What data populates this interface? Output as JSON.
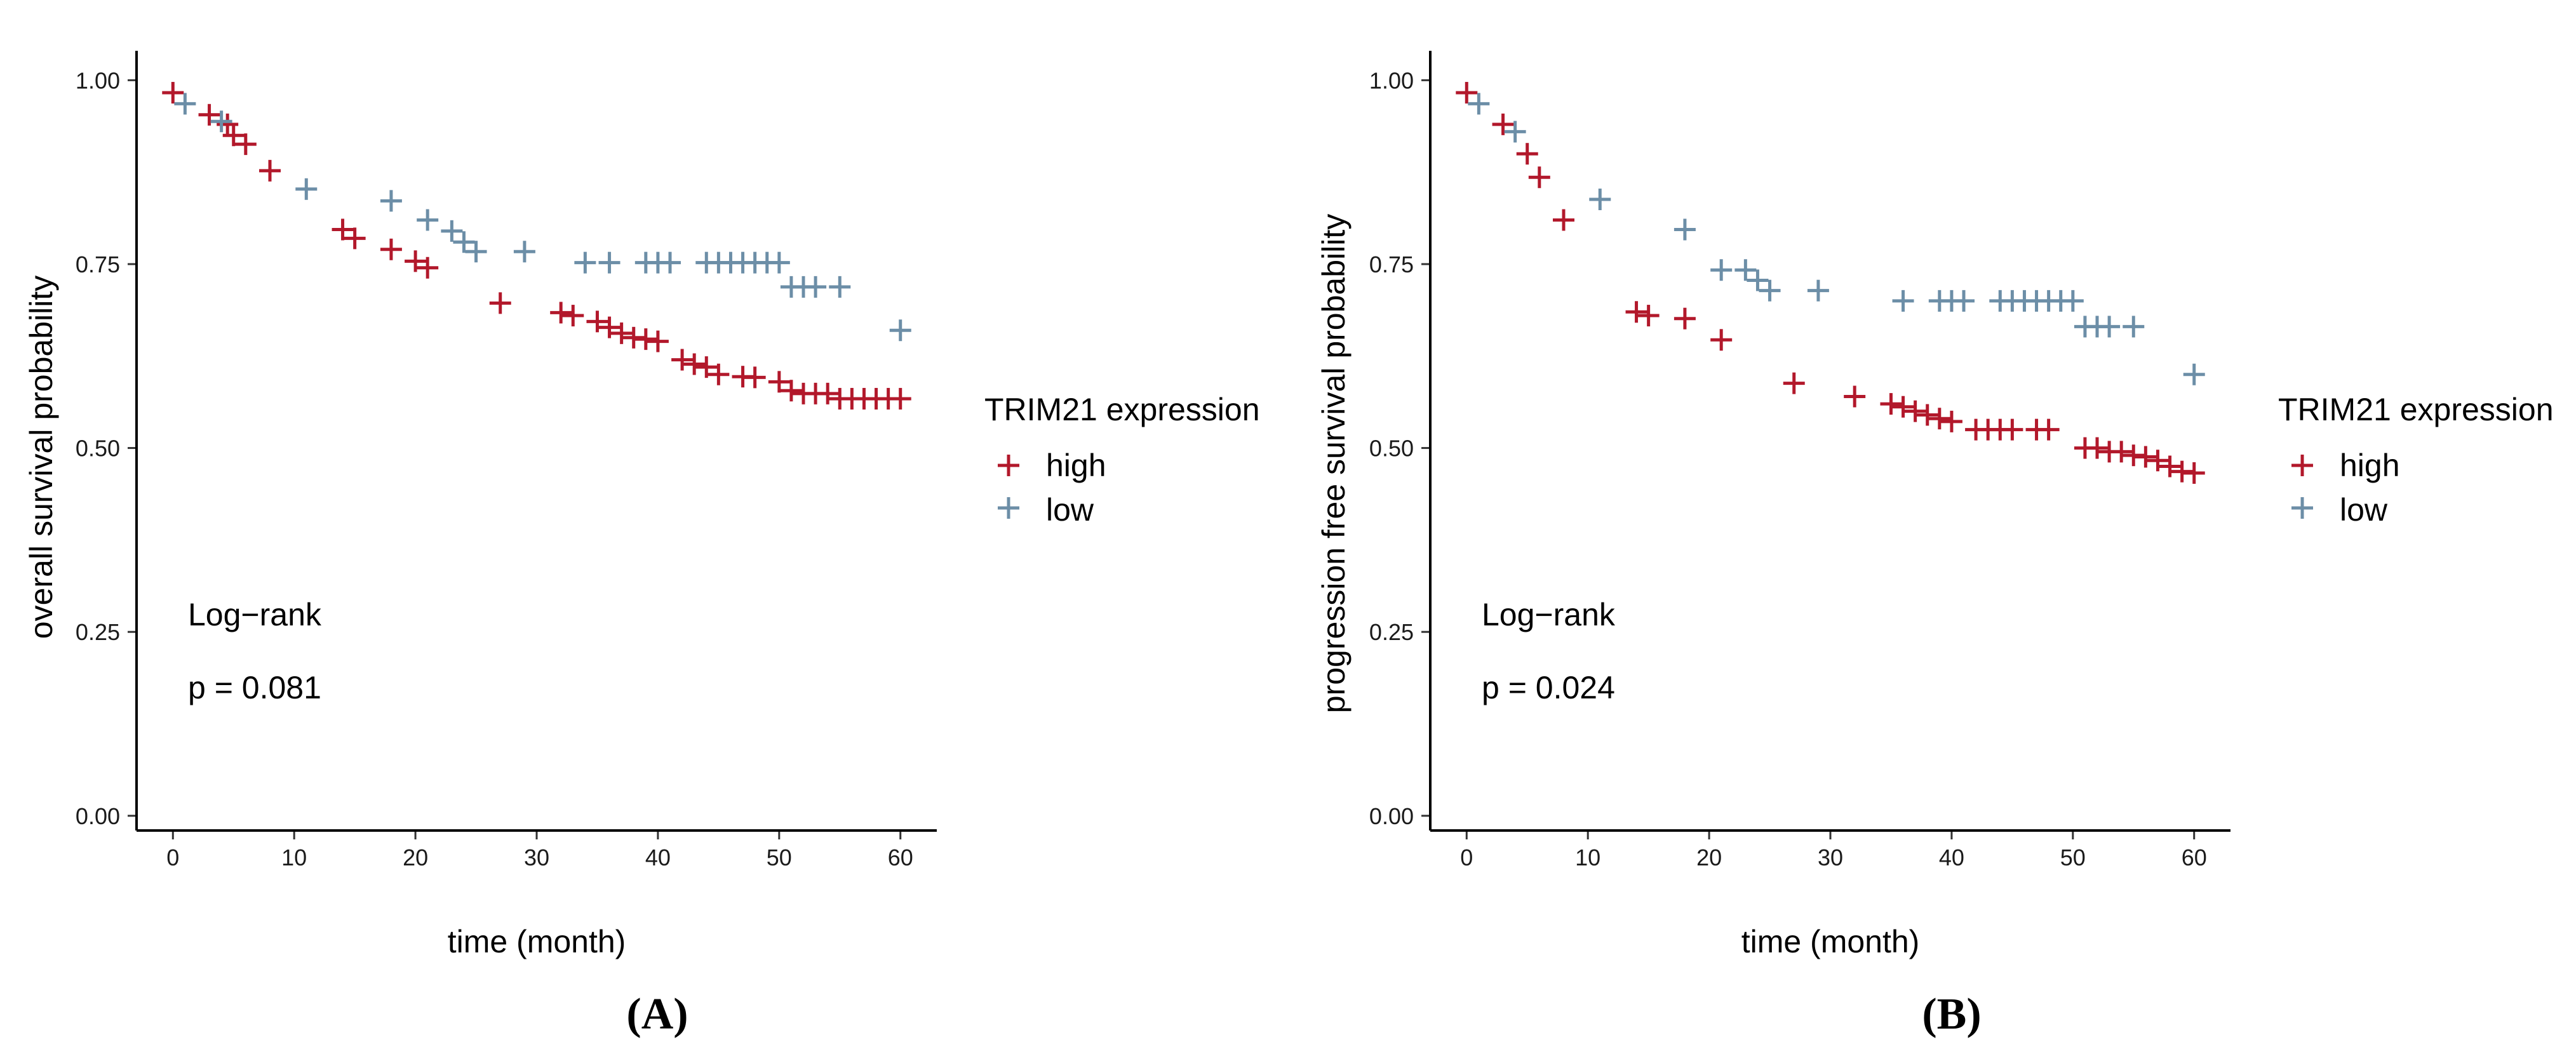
{
  "colors": {
    "high": "#b2182b",
    "low": "#6c8ea7"
  },
  "chart_data": [
    {
      "type": "scatter",
      "panel_label": "A",
      "xlabel": "time (month)",
      "ylabel": "overall survival probability",
      "xticks": [
        "0",
        "10",
        "20",
        "30",
        "40",
        "50",
        "60"
      ],
      "yticks": [
        "0.00",
        "0.25",
        "0.50",
        "0.75",
        "1.00"
      ],
      "xlim": [
        -3,
        63
      ],
      "ylim": [
        -0.02,
        1.04
      ],
      "legend": {
        "title": "TRIM21 expression",
        "high_label": "high",
        "low_label": "low"
      },
      "annotation": {
        "test": "Log−rank",
        "pvalue": "p = 0.081"
      },
      "series": [
        {
          "name": "high",
          "x": [
            0,
            3,
            4.5,
            5,
            6,
            8,
            14,
            15,
            18,
            20,
            21,
            27,
            32,
            33,
            35,
            36,
            37,
            38,
            39,
            40,
            42,
            43,
            44,
            45,
            47,
            48,
            50,
            51,
            52,
            53,
            54,
            55,
            56,
            57,
            58,
            59,
            60
          ],
          "y": [
            0.983,
            0.953,
            0.94,
            0.925,
            0.913,
            0.877,
            0.797,
            0.785,
            0.77,
            0.754,
            0.745,
            0.697,
            0.684,
            0.68,
            0.672,
            0.664,
            0.656,
            0.65,
            0.648,
            0.645,
            0.62,
            0.614,
            0.61,
            0.6,
            0.597,
            0.596,
            0.59,
            0.578,
            0.574,
            0.574,
            0.574,
            0.567,
            0.567,
            0.567,
            0.567,
            0.567,
            0.567
          ]
        },
        {
          "name": "low",
          "x": [
            1,
            4,
            11,
            18,
            21,
            23,
            24,
            25,
            29,
            34,
            36,
            39,
            40,
            41,
            44,
            45,
            46,
            47,
            48,
            49,
            50,
            51,
            52,
            53,
            55,
            60
          ],
          "y": [
            0.968,
            0.944,
            0.852,
            0.836,
            0.81,
            0.795,
            0.78,
            0.767,
            0.767,
            0.752,
            0.752,
            0.752,
            0.752,
            0.752,
            0.752,
            0.752,
            0.752,
            0.752,
            0.752,
            0.752,
            0.752,
            0.719,
            0.719,
            0.719,
            0.719,
            0.66
          ]
        }
      ]
    },
    {
      "type": "scatter",
      "panel_label": "B",
      "xlabel": "time (month)",
      "ylabel": "progression free survival probability",
      "xticks": [
        "0",
        "10",
        "20",
        "30",
        "40",
        "50",
        "60"
      ],
      "yticks": [
        "0.00",
        "0.25",
        "0.50",
        "0.75",
        "1.00"
      ],
      "xlim": [
        -3,
        63
      ],
      "ylim": [
        -0.02,
        1.04
      ],
      "legend": {
        "title": "TRIM21 expression",
        "high_label": "high",
        "low_label": "low"
      },
      "annotation": {
        "test": "Log−rank",
        "pvalue": "p = 0.024"
      },
      "series": [
        {
          "name": "high",
          "x": [
            0,
            3,
            5,
            6,
            8,
            14,
            15,
            18,
            21,
            27,
            32,
            35,
            36,
            37,
            38,
            39,
            40,
            42,
            43,
            44,
            45,
            47,
            48,
            51,
            52,
            53,
            54,
            55,
            56,
            57,
            58,
            59,
            60
          ],
          "y": [
            0.983,
            0.94,
            0.9,
            0.868,
            0.81,
            0.685,
            0.68,
            0.676,
            0.647,
            0.588,
            0.57,
            0.56,
            0.556,
            0.55,
            0.545,
            0.54,
            0.536,
            0.525,
            0.525,
            0.525,
            0.525,
            0.525,
            0.525,
            0.5,
            0.5,
            0.495,
            0.495,
            0.49,
            0.488,
            0.483,
            0.475,
            0.468,
            0.466
          ]
        },
        {
          "name": "low",
          "x": [
            1,
            4,
            11,
            18,
            21,
            23,
            24,
            25,
            29,
            36,
            39,
            40,
            41,
            44,
            45,
            46,
            47,
            48,
            49,
            50,
            51,
            52,
            53,
            55,
            60
          ],
          "y": [
            0.968,
            0.93,
            0.838,
            0.797,
            0.742,
            0.742,
            0.728,
            0.714,
            0.714,
            0.7,
            0.7,
            0.7,
            0.7,
            0.7,
            0.7,
            0.7,
            0.7,
            0.7,
            0.7,
            0.7,
            0.665,
            0.665,
            0.665,
            0.665,
            0.6
          ]
        }
      ]
    }
  ]
}
